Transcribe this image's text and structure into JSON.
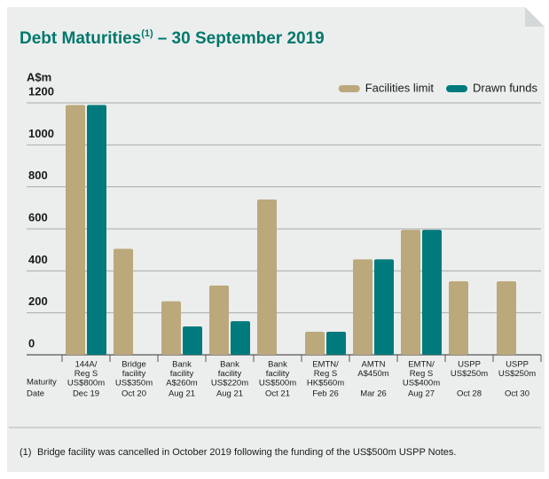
{
  "chart_data": {
    "type": "bar",
    "title": [
      "Debt Maturities",
      "(1)",
      "– 30 September 2019"
    ],
    "y_axis_label": "A$m",
    "categories": [
      "Dec 19",
      "Oct 20",
      "Aug 21",
      "Aug 21",
      "Oct 21",
      "Feb 26",
      "Mar 26",
      "Aug 27",
      "Oct 28",
      "Oct 30"
    ],
    "facilities": [
      [
        "144A/",
        "Reg S",
        "US$800m"
      ],
      [
        "Bridge",
        "facility",
        "US$350m"
      ],
      [
        "Bank",
        "facility",
        "A$260m"
      ],
      [
        "Bank",
        "facility",
        "US$220m"
      ],
      [
        "Bank",
        "facility",
        "US$500m"
      ],
      [
        "EMTN/",
        "Reg S",
        "HK$560m"
      ],
      [
        "AMTN",
        "A$450m"
      ],
      [
        "EMTN/",
        "Reg S",
        "US$400m"
      ],
      [
        "USPP",
        "US$250m"
      ],
      [
        "USPP",
        "US$250m"
      ]
    ],
    "maturity_label": [
      "Maturity",
      "Date"
    ],
    "series": [
      {
        "name": "Facilities limit",
        "color": "#bba97b",
        "values": [
          1190,
          505,
          255,
          330,
          740,
          110,
          455,
          595,
          350,
          350
        ]
      },
      {
        "name": "Drawn funds",
        "color": "#007a7c",
        "values": [
          1190,
          null,
          135,
          160,
          null,
          110,
          455,
          595,
          null,
          null
        ]
      }
    ],
    "ylim": [
      0,
      1200
    ],
    "yticks": [
      0,
      200,
      400,
      600,
      800,
      1000,
      1200
    ],
    "grid": true,
    "legend": "top-right",
    "footnote": {
      "marker": "(1)",
      "text": "Bridge facility was cancelled in October 2019 following the funding of the US$500m USPP Notes."
    }
  }
}
